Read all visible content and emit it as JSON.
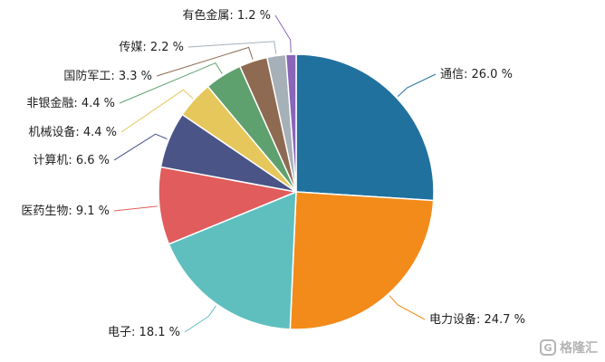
{
  "chart_data": {
    "type": "pie",
    "unit_suffix": " %",
    "slices": [
      {
        "label": "通信",
        "value": 26.0,
        "color": "#21719f"
      },
      {
        "label": "电力设备",
        "value": 24.7,
        "color": "#f38b1a"
      },
      {
        "label": "电子",
        "value": 18.1,
        "color": "#5fbfbf"
      },
      {
        "label": "医药生物",
        "value": 9.1,
        "color": "#e15c5c"
      },
      {
        "label": "计算机",
        "value": 6.6,
        "color": "#4b5487"
      },
      {
        "label": "机械设备",
        "value": 4.4,
        "color": "#e5c75b"
      },
      {
        "label": "非银金融",
        "value": 4.4,
        "color": "#5fa16e"
      },
      {
        "label": "国防军工",
        "value": 3.3,
        "color": "#8f6a52"
      },
      {
        "label": "传媒",
        "value": 2.2,
        "color": "#a6b0b8"
      },
      {
        "label": "有色金属",
        "value": 1.2,
        "color": "#8a65b8"
      }
    ]
  },
  "watermark": {
    "text": "格隆汇",
    "icon": "g-logo-icon"
  }
}
